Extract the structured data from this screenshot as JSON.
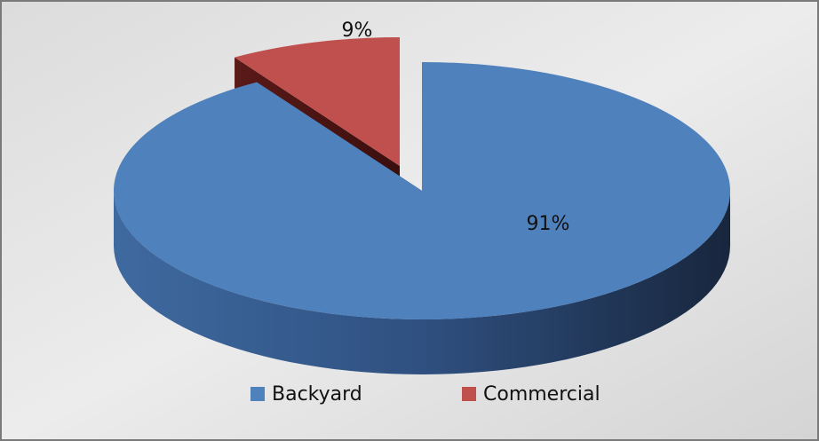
{
  "chart_data": {
    "type": "pie",
    "categories": [
      "Backyard",
      "Commercial"
    ],
    "values": [
      91,
      9
    ],
    "value_labels": [
      "91%",
      "9%"
    ],
    "colors": [
      "#4f81bd",
      "#c0504d"
    ],
    "legend": "bottom"
  }
}
